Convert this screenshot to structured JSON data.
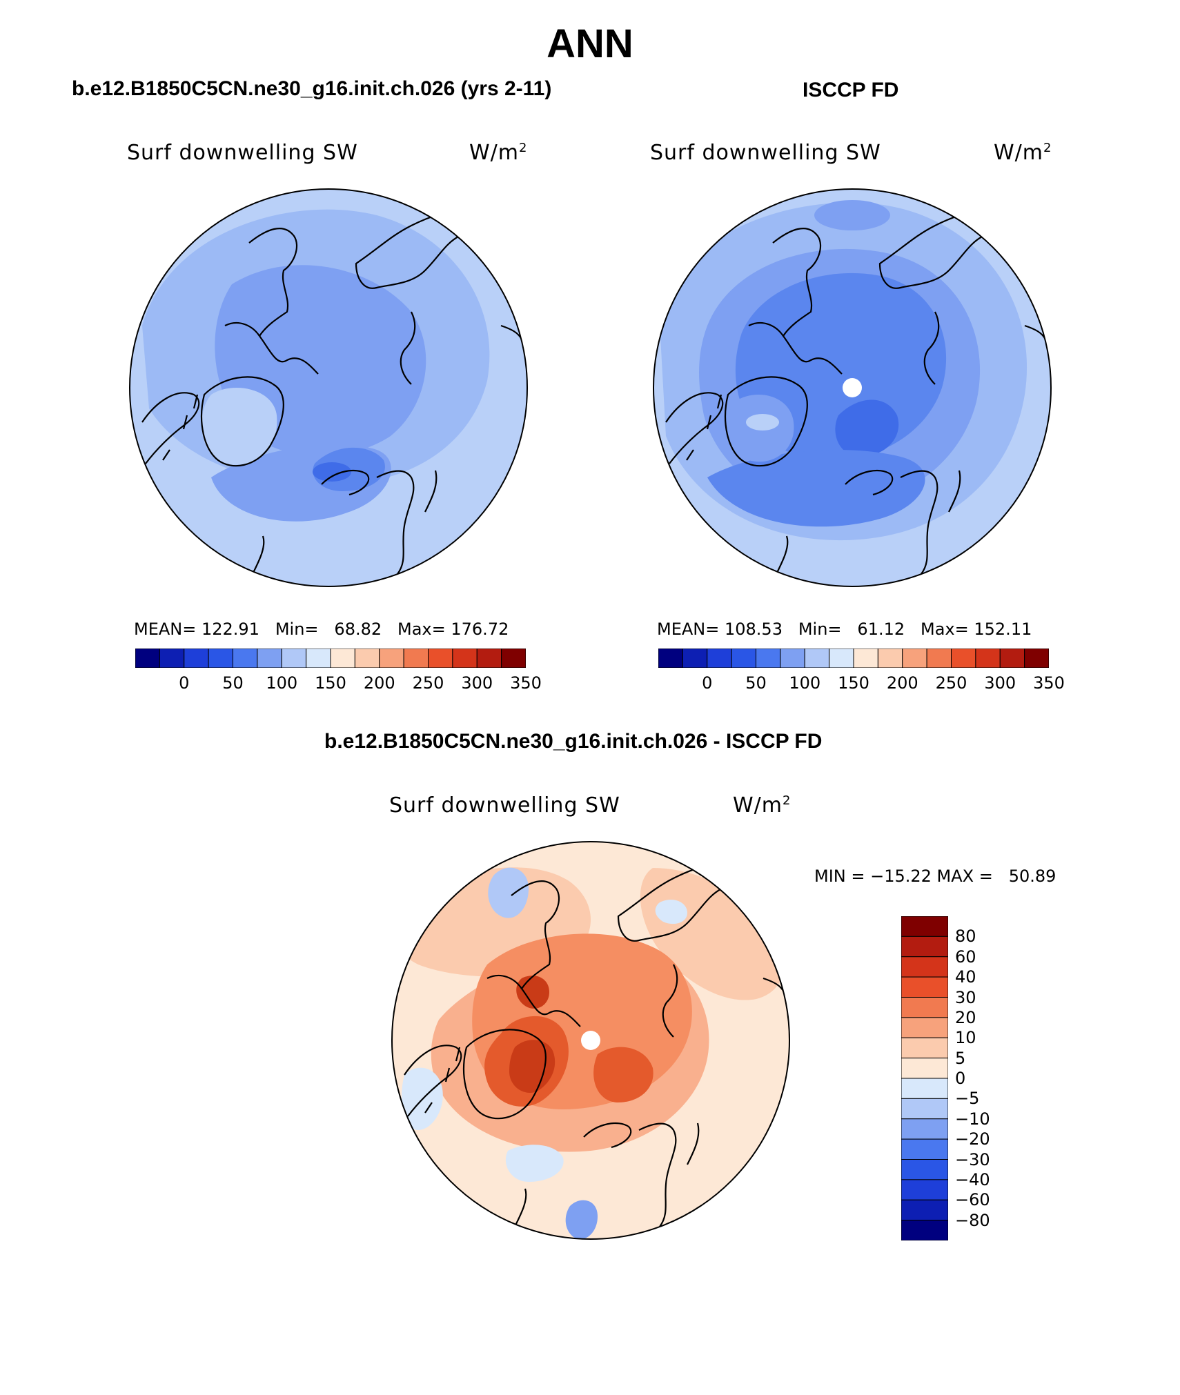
{
  "title": "ANN",
  "panels": [
    {
      "case": "b.e12.B1850C5CN.ne30_g16.init.ch.026 (yrs 2-11)",
      "variable": "Surf downwelling SW",
      "units": "W/m",
      "units_sup": "2",
      "stats": "MEAN= 122.91   Min=   68.82   Max= 176.72"
    },
    {
      "case": "ISCCP FD",
      "variable": "Surf downwelling SW",
      "units": "W/m",
      "units_sup": "2",
      "stats": "MEAN= 108.53   Min=   61.12   Max= 152.11"
    }
  ],
  "colorbar_top": {
    "labels": [
      "0",
      "50",
      "100",
      "150",
      "200",
      "250",
      "300",
      "350"
    ],
    "colors": [
      "#00007f",
      "#0d1fb3",
      "#1e3fd9",
      "#2a56e6",
      "#4a78ef",
      "#7ea0f2",
      "#b0c8f7",
      "#d8e8fb",
      "#fde8d6",
      "#fbcbae",
      "#f7a27c",
      "#f17a50",
      "#e9502a",
      "#d4341a",
      "#b31c10",
      "#7f0000"
    ]
  },
  "diff": {
    "title": "b.e12.B1850C5CN.ne30_g16.init.ch.026 - ISCCP FD",
    "variable": "Surf downwelling SW",
    "units": "W/m",
    "units_sup": "2",
    "minmax": "MIN = −15.22 MAX =   50.89",
    "colorbar": {
      "labels": [
        "80",
        "60",
        "40",
        "30",
        "20",
        "10",
        "5",
        "0",
        "−5",
        "−10",
        "−20",
        "−30",
        "−40",
        "−60",
        "−80"
      ],
      "colors": [
        "#7f0000",
        "#b31c10",
        "#d4341a",
        "#e9502a",
        "#f17a50",
        "#f7a27c",
        "#fbcbae",
        "#fde8d6",
        "#d8e8fb",
        "#b0c8f7",
        "#7ea0f2",
        "#4a78ef",
        "#2a56e6",
        "#1e3fd9",
        "#0d1fb3",
        "#00007f"
      ]
    }
  },
  "map_palette": {
    "panel1": [
      "#b9d0f8",
      "#9cbaf5",
      "#7ea0f2",
      "#5b86ee",
      "#3f6ce8"
    ],
    "panel2": [
      "#b9d0f8",
      "#9cbaf5",
      "#7ea0f2",
      "#5b86ee",
      "#3f6ce8",
      "#2c58e4"
    ],
    "diff": [
      "#fde8d6",
      "#fbcbae",
      "#f9b08e",
      "#f58e62",
      "#ef7443",
      "#e45a2c",
      "#c93b17",
      "#d8e8fb",
      "#b0c8f7",
      "#7ea0f2"
    ]
  }
}
